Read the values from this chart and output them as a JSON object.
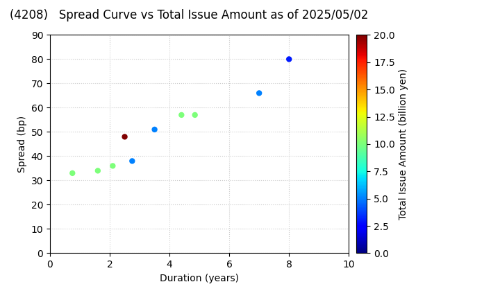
{
  "title": "(4208)   Spread Curve vs Total Issue Amount as of 2025/05/02",
  "xlabel": "Duration (years)",
  "ylabel": "Spread (bp)",
  "colorbar_label": "Total Issue Amount (billion yen)",
  "xlim": [
    0,
    10
  ],
  "ylim": [
    0,
    90
  ],
  "xticks": [
    0,
    2,
    4,
    6,
    8,
    10
  ],
  "yticks": [
    0,
    10,
    20,
    30,
    40,
    50,
    60,
    70,
    80,
    90
  ],
  "points": [
    {
      "duration": 0.75,
      "spread": 33,
      "amount": 10.0
    },
    {
      "duration": 1.6,
      "spread": 34,
      "amount": 10.0
    },
    {
      "duration": 2.1,
      "spread": 36,
      "amount": 10.0
    },
    {
      "duration": 2.5,
      "spread": 48,
      "amount": 20.0
    },
    {
      "duration": 2.75,
      "spread": 38,
      "amount": 5.0
    },
    {
      "duration": 3.5,
      "spread": 51,
      "amount": 5.0
    },
    {
      "duration": 4.4,
      "spread": 57,
      "amount": 10.0
    },
    {
      "duration": 4.85,
      "spread": 57,
      "amount": 10.0
    },
    {
      "duration": 7.0,
      "spread": 66,
      "amount": 5.0
    },
    {
      "duration": 8.0,
      "spread": 80,
      "amount": 3.0
    }
  ],
  "cmap": "jet",
  "vmin": 0.0,
  "vmax": 20.0,
  "marker_size": 25,
  "title_fontsize": 12,
  "label_fontsize": 10,
  "tick_fontsize": 10,
  "background_color": "#ffffff",
  "grid_color": "#cccccc",
  "colorbar_ticks": [
    0.0,
    2.5,
    5.0,
    7.5,
    10.0,
    12.5,
    15.0,
    17.5,
    20.0
  ]
}
